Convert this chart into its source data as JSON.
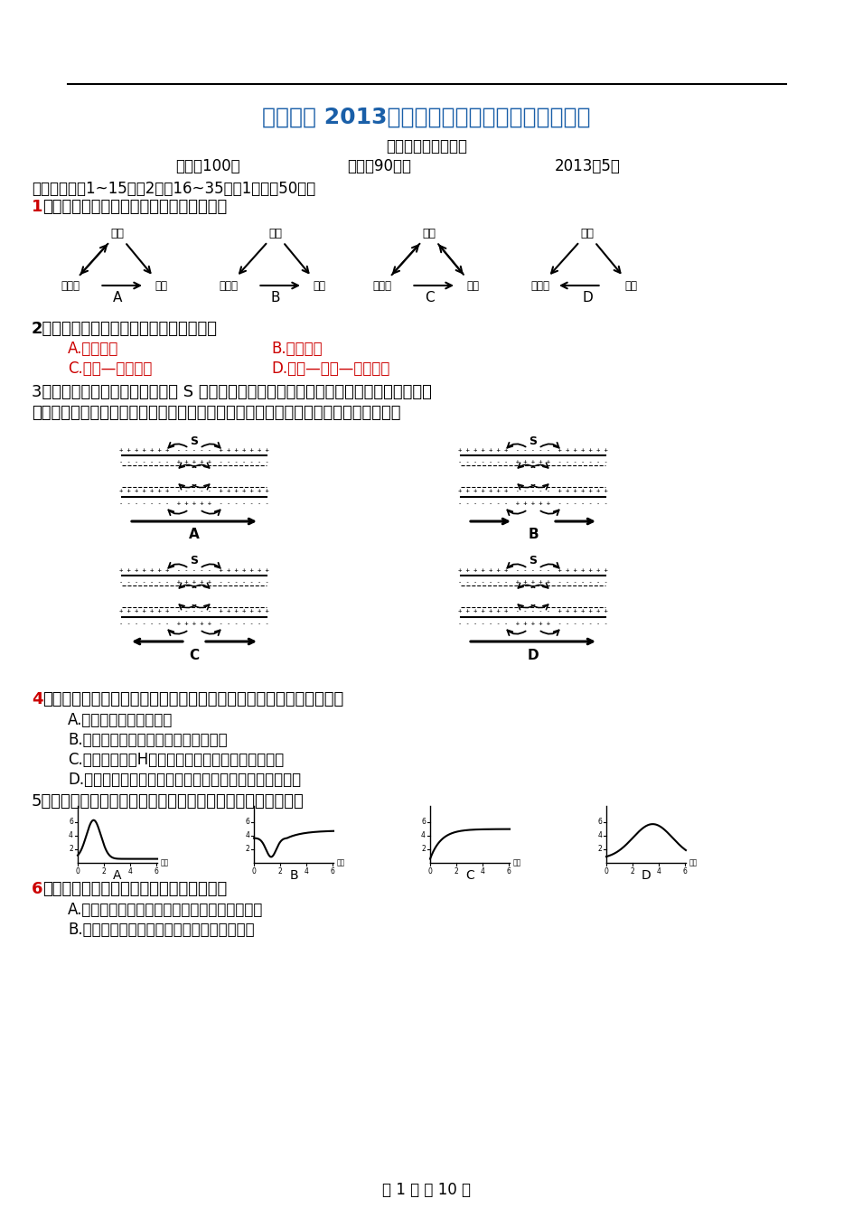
{
  "title": "德化一中 2013年春高二年第二次质检生物科试卷",
  "title_color": "#1a5fa8",
  "review_line": "审核者：高二生物组",
  "info_line1": "满分：100分",
  "info_line2": "时间：90分钟",
  "info_line3": "2013年5月",
  "section1_header": "一、选择题：1~15题各2分，16~35题各1分，共50分；",
  "q1_label": "1",
  "q1_text": "、下图表示内环境成分间的关系，正确的是",
  "q2_text": "2、关于内环境稳态调节机制的现代观点是",
  "q2_A": "A.神经调节",
  "q2_B": "B.体液调节",
  "q2_C": "C.神经—体液调节",
  "q2_D": "D.神经—体液—免疫调节",
  "q3_text": "3、下图表示一段离体神经纤维的 S 点受到刺激而兴奋时，局部电流和神经兴奋的传导方向",
  "q3_sub": "（弯箭头表示膜内外局部电流的流动方向，直箭头表示兴奋传导方向），其中正确的是",
  "q4_label": "4",
  "q4_text": "、下列事例能够说明神经系统中的高级中枢对低级中枢有控制作用的是",
  "q4_A": "A.针刺指尖引起缩手反射",
  "q4_B": "B.短期记忆的多次重复可形成长期记忆",
  "q4_C": "C.大脑皮层语言H区损伤，导致人不能听懂别人讲话",
  "q4_D": "D.意识丧失的病人能排尿但不能控制，意识恢复后可控制",
  "q5_text": "5、下列能反应正常人饭后血液中胰岛素含量变化趋势的曲线是",
  "q6_label": "6",
  "q6_text": "、下列有关人体体温调节的叙述，错误的是",
  "q6_A": "A.肾上腺素可使机体在短时间内迅速增加产热量",
  "q6_B": "B.寒冷刺激可使皮肤血管收缩，机体散热减少",
  "page_footer": "第 1 页 共 10 页",
  "bg_color": "#ffffff",
  "text_color": "#000000",
  "title_blue": "#1a5fa8",
  "option_red": "#cc0000",
  "q_num_red": "#cc0000"
}
